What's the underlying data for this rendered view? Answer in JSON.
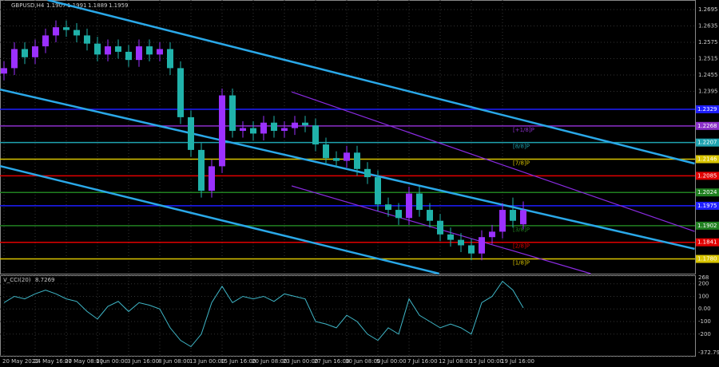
{
  "chart_data": {
    "type": "candlestick",
    "symbol": "GBPUSD,H4",
    "categories": [
      "20 May 2022",
      null,
      null,
      "24 May 16:00",
      null,
      null,
      "27 May 08:00",
      null,
      null,
      "1 Jun 00:00",
      null,
      null,
      "3 Jun 16:00",
      null,
      null,
      "8 Jun 08:00",
      null,
      null,
      "13 Jun 00:00",
      null,
      null,
      "15 Jun 16:00",
      null,
      null,
      "20 Jun 08:00",
      null,
      null,
      "23 Jun 00:00",
      null,
      null,
      "27 Jun 16:00",
      null,
      null,
      "30 Jun 08:00",
      null,
      null,
      "5 Jul 00:00",
      null,
      null,
      "7 Jul 16:00",
      null,
      null,
      "12 Jul 08:00",
      null,
      null,
      "15 Jul 00:00",
      null,
      null,
      "19 Jul 16:00",
      null,
      null
    ],
    "open": [
      1.246,
      1.248,
      1.255,
      1.252,
      1.256,
      1.26,
      1.263,
      1.262,
      1.26,
      1.257,
      1.253,
      1.256,
      1.254,
      1.251,
      1.256,
      1.253,
      1.255,
      1.248,
      1.23,
      1.218,
      1.203,
      1.212,
      1.238,
      1.225,
      1.226,
      1.224,
      1.228,
      1.225,
      1.226,
      1.228,
      1.227,
      1.22,
      1.215,
      1.214,
      1.217,
      1.211,
      1.208,
      1.198,
      1.196,
      1.193,
      1.202,
      1.196,
      1.192,
      1.187,
      1.185,
      1.183,
      1.18,
      1.186,
      1.188,
      1.196,
      1.1907
    ],
    "high": [
      1.2505,
      1.2575,
      1.2575,
      1.2585,
      1.2625,
      1.2655,
      1.2655,
      1.2645,
      1.2625,
      1.2595,
      1.2585,
      1.2585,
      1.2565,
      1.2585,
      1.2585,
      1.2575,
      1.2575,
      1.2505,
      1.2325,
      1.2205,
      1.2145,
      1.2405,
      1.2405,
      1.2285,
      1.2285,
      1.2305,
      1.2305,
      1.2285,
      1.2305,
      1.2305,
      1.2295,
      1.2225,
      1.2175,
      1.2195,
      1.2195,
      1.2135,
      1.2105,
      1.2005,
      1.1985,
      1.2045,
      1.2045,
      1.1985,
      1.1945,
      1.1895,
      1.1875,
      1.1855,
      1.1885,
      1.1905,
      1.1985,
      1.2005,
      1.1991
    ],
    "low": [
      1.2435,
      1.2455,
      1.2495,
      1.2495,
      1.2535,
      1.2575,
      1.2595,
      1.2575,
      1.2545,
      1.2505,
      1.2505,
      1.2515,
      1.2485,
      1.2485,
      1.2505,
      1.2505,
      1.2455,
      1.2275,
      1.2155,
      1.2005,
      1.2005,
      1.2095,
      1.2225,
      1.2225,
      1.2215,
      1.2215,
      1.2225,
      1.2225,
      1.2235,
      1.2245,
      1.2175,
      1.2125,
      1.2115,
      1.2115,
      1.2085,
      1.2055,
      1.1955,
      1.1935,
      1.1905,
      1.1905,
      1.1935,
      1.1895,
      1.1845,
      1.1825,
      1.1805,
      1.1775,
      1.1775,
      1.1835,
      1.1855,
      1.1895,
      1.1889
    ],
    "close": [
      1.248,
      1.255,
      1.252,
      1.256,
      1.26,
      1.263,
      1.262,
      1.26,
      1.257,
      1.253,
      1.256,
      1.254,
      1.251,
      1.256,
      1.253,
      1.255,
      1.248,
      1.23,
      1.218,
      1.203,
      1.212,
      1.238,
      1.225,
      1.226,
      1.224,
      1.228,
      1.225,
      1.226,
      1.228,
      1.227,
      1.22,
      1.215,
      1.214,
      1.217,
      1.211,
      1.208,
      1.198,
      1.196,
      1.193,
      1.202,
      1.196,
      1.192,
      1.187,
      1.185,
      1.183,
      1.18,
      1.186,
      1.188,
      1.196,
      1.192,
      1.1959
    ],
    "up_color": "#9b30ff",
    "down_color": "#20b2aa",
    "ylim": [
      1.1726,
      1.273
    ],
    "yticks": [
      1.2695,
      1.2635,
      1.2575,
      1.2515,
      1.2455,
      1.2395
    ],
    "levels": [
      {
        "value": 1.2329,
        "color": "#1e1eff"
      },
      {
        "value": 1.2268,
        "color": "#8b2fc9",
        "name": "[+1/8]P"
      },
      {
        "value": 1.2207,
        "color": "#1fa3b0",
        "name": "[8/8]P"
      },
      {
        "value": 1.2146,
        "color": "#d8c400",
        "name": "[7/8]P"
      },
      {
        "value": 1.2085,
        "color": "#e00000"
      },
      {
        "value": 1.2024,
        "color": "#208020"
      },
      {
        "value": 1.1975,
        "color": "#1e1eff"
      },
      {
        "value": 1.1902,
        "color": "#208020",
        "name": "[3/8]P"
      },
      {
        "value": 1.1841,
        "color": "#e00000",
        "name": "[2/8]P"
      },
      {
        "value": 1.178,
        "label": "1.1780",
        "color": "#d8c400",
        "name": "[1/8]P"
      }
    ],
    "trendlines": [
      {
        "x": [
          4.2,
          66.5
        ],
        "y": [
          1.273,
          1.213
        ],
        "color": "#2aa8e8"
      },
      {
        "x": [
          -0.4,
          66.5
        ],
        "y": [
          1.2402,
          1.1817
        ],
        "color": "#2aa8e8"
      },
      {
        "x": [
          -0.4,
          41.9
        ],
        "y": [
          1.2121,
          1.1726
        ],
        "color": "#2aa8e8"
      },
      {
        "x": [
          27.7,
          66.5
        ],
        "y": [
          1.2393,
          1.1881
        ],
        "color": "#8a2be2"
      },
      {
        "x": [
          27.7,
          56.5
        ],
        "y": [
          1.2048,
          1.1726
        ],
        "color": "#8a2be2"
      }
    ],
    "cci": {
      "name": "V_CCI(20)",
      "color": "#3fb7c8",
      "values": [
        50,
        100,
        80,
        120,
        150,
        120,
        80,
        60,
        -20,
        -80,
        20,
        60,
        -20,
        50,
        30,
        0,
        -150,
        -250,
        -300,
        -200,
        50,
        180,
        50,
        100,
        80,
        100,
        60,
        120,
        100,
        80,
        -100,
        -120,
        -150,
        -50,
        -100,
        -200,
        -250,
        -150,
        -200,
        80,
        -50,
        -100,
        -150,
        -120,
        -150,
        -200,
        50,
        100,
        220,
        150,
        8.7269
      ],
      "ylim": [
        -372.793,
        268
      ],
      "yticks": [
        268,
        200,
        100,
        {
          "value": 0,
          "label": "0.00"
        },
        -100,
        -200,
        -372.793
      ]
    }
  }
}
